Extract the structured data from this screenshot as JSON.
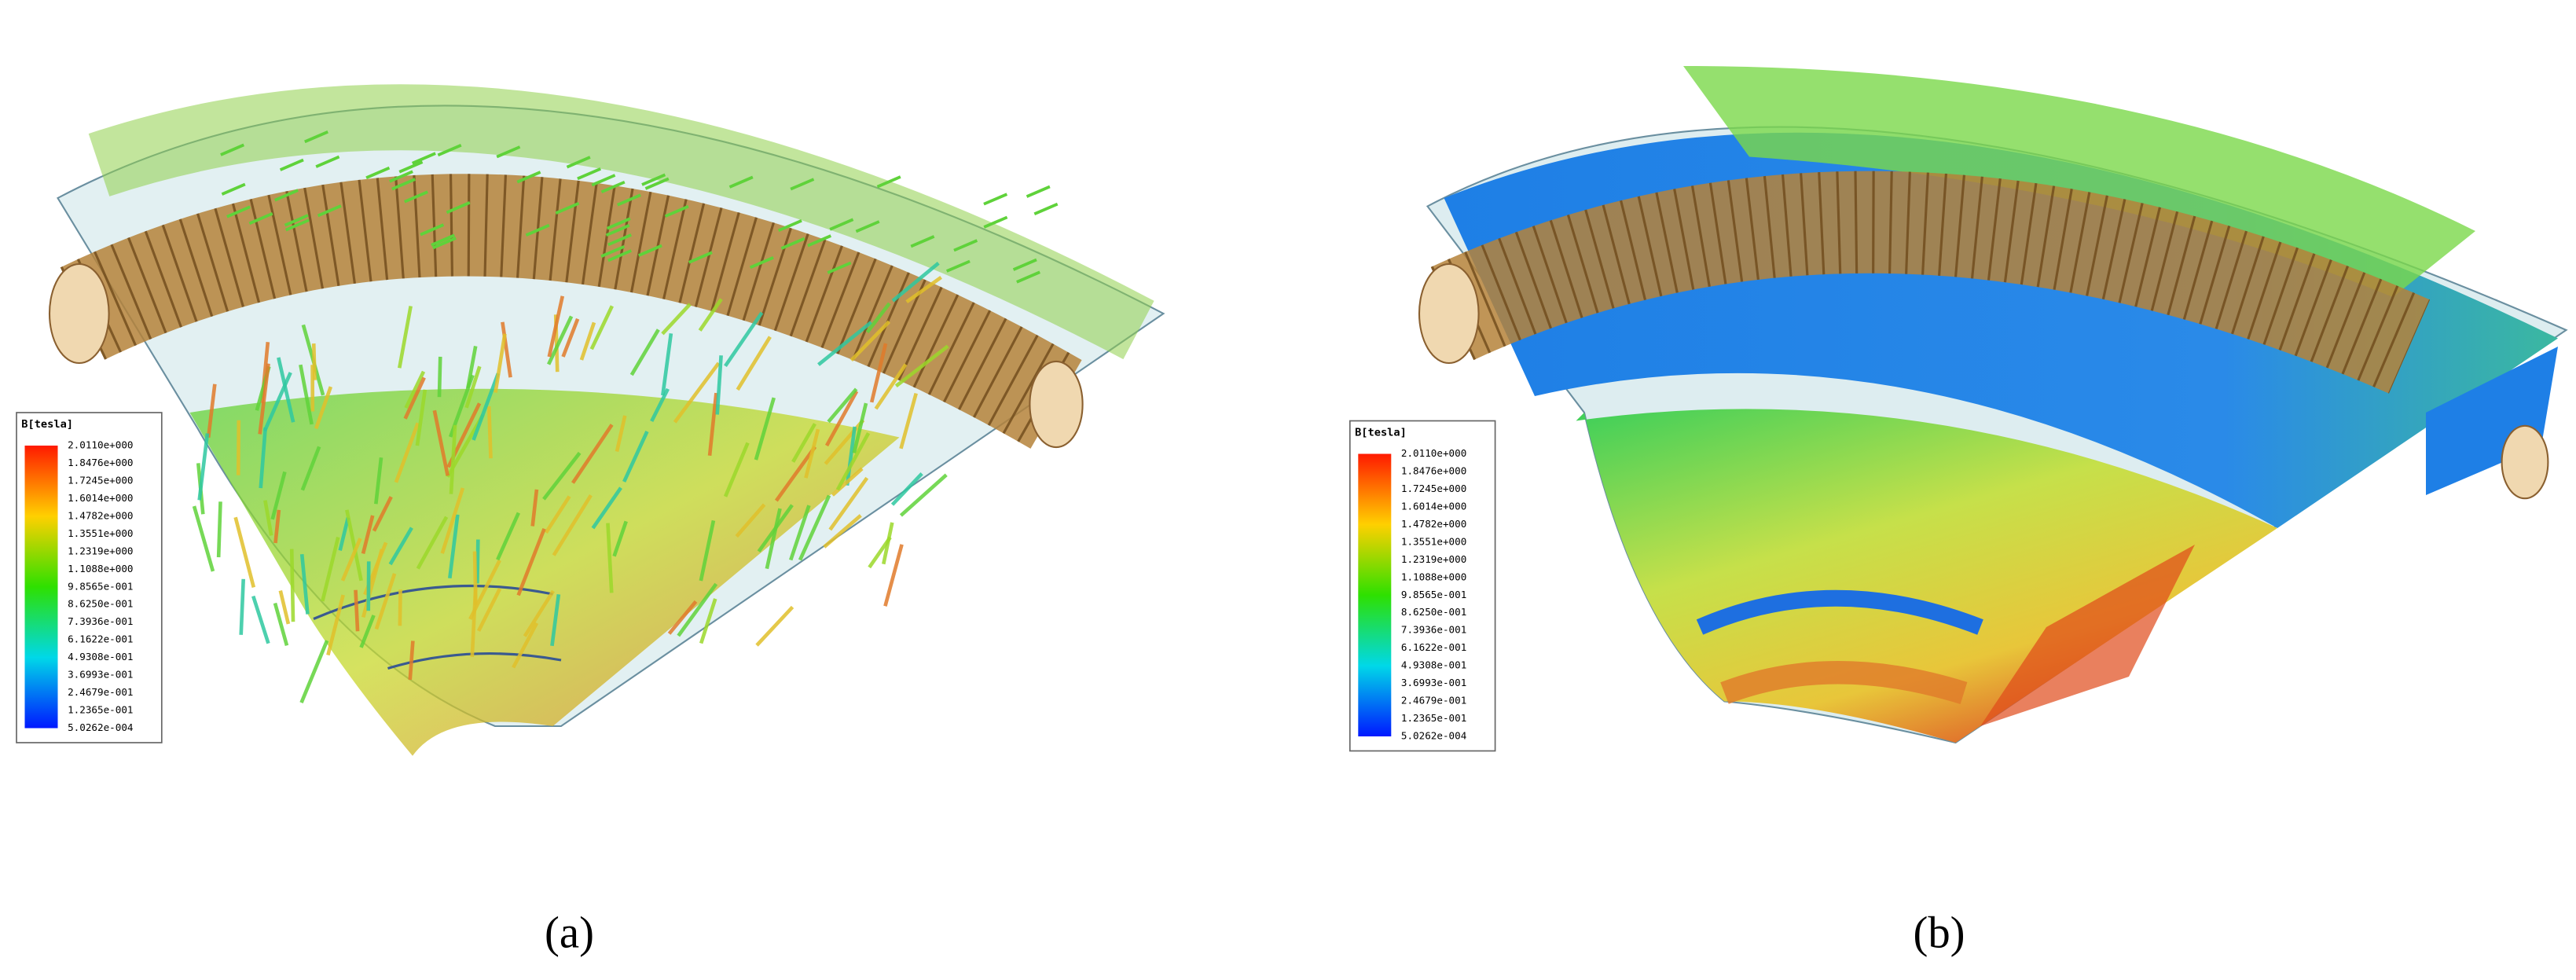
{
  "panels": [
    {
      "label": "(a)",
      "legend": {
        "title": "B[tesla]",
        "values": [
          "2.0110e+000",
          "1.8476e+000",
          "1.7245e+000",
          "1.6014e+000",
          "1.4782e+000",
          "1.3551e+000",
          "1.2319e+000",
          "1.1088e+000",
          "9.8565e-001",
          "8.6250e-001",
          "7.3936e-001",
          "6.1622e-001",
          "4.9308e-001",
          "3.6993e-001",
          "2.4679e-001",
          "1.2365e-001",
          "5.0262e-004"
        ]
      }
    },
    {
      "label": "(b)",
      "legend": {
        "title": "B[tesla]",
        "values": [
          "2.0110e+000",
          "1.8476e+000",
          "1.7245e+000",
          "1.6014e+000",
          "1.4782e+000",
          "1.3551e+000",
          "1.2319e+000",
          "1.1088e+000",
          "9.8565e-001",
          "8.6250e-001",
          "7.3936e-001",
          "6.1622e-001",
          "4.9308e-001",
          "3.6993e-001",
          "2.4679e-001",
          "1.2365e-001",
          "5.0262e-004"
        ]
      }
    }
  ]
}
